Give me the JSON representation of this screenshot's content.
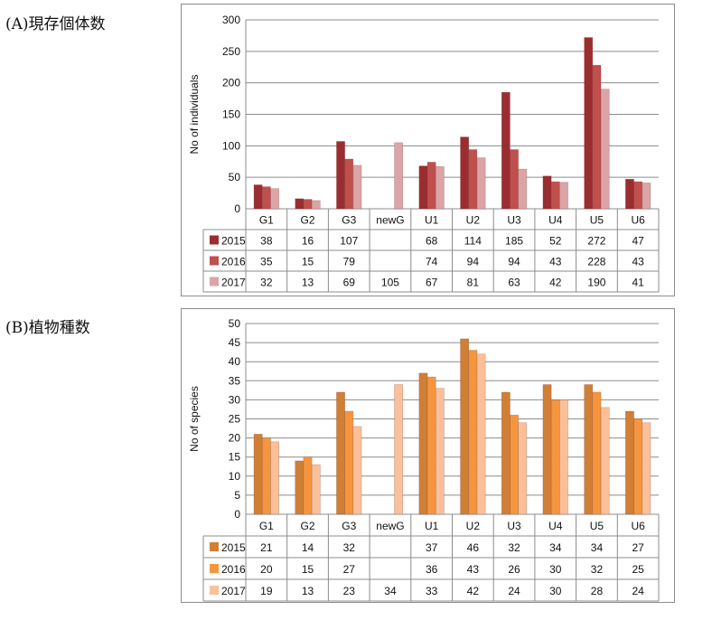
{
  "panels": [
    {
      "label": "(A)現存個体数"
    },
    {
      "label": "(B)植物種数"
    }
  ],
  "chart_data": [
    {
      "type": "bar",
      "title": "",
      "ylabel": "No of individuals",
      "xlabel": "",
      "ylim": [
        0,
        300
      ],
      "yticks": [
        0,
        50,
        100,
        150,
        200,
        250,
        300
      ],
      "grid": true,
      "legend": "data-table-left",
      "categories": [
        "G1",
        "G2",
        "G3",
        "newG",
        "U1",
        "U2",
        "U3",
        "U4",
        "U5",
        "U6"
      ],
      "series": [
        {
          "name": "2015",
          "color": "#9b2d30",
          "values": [
            38,
            16,
            107,
            null,
            68,
            114,
            185,
            52,
            272,
            47
          ]
        },
        {
          "name": "2016",
          "color": "#c0504d",
          "values": [
            35,
            15,
            79,
            null,
            74,
            94,
            94,
            43,
            228,
            43
          ]
        },
        {
          "name": "2017",
          "color": "#dba5a6",
          "values": [
            32,
            13,
            69,
            105,
            67,
            81,
            63,
            42,
            190,
            41
          ]
        }
      ]
    },
    {
      "type": "bar",
      "title": "",
      "ylabel": "No of species",
      "xlabel": "",
      "ylim": [
        0,
        50
      ],
      "yticks": [
        0,
        5,
        10,
        15,
        20,
        25,
        30,
        35,
        40,
        45,
        50
      ],
      "grid": true,
      "legend": "data-table-left",
      "categories": [
        "G1",
        "G2",
        "G3",
        "newG",
        "U1",
        "U2",
        "U3",
        "U4",
        "U5",
        "U6"
      ],
      "series": [
        {
          "name": "2015",
          "color": "#d07f35",
          "values": [
            21,
            14,
            32,
            null,
            37,
            46,
            32,
            34,
            34,
            27
          ]
        },
        {
          "name": "2016",
          "color": "#f5963f",
          "values": [
            20,
            15,
            27,
            null,
            36,
            43,
            26,
            30,
            32,
            25
          ]
        },
        {
          "name": "2017",
          "color": "#fbc09a",
          "values": [
            19,
            13,
            23,
            34,
            33,
            42,
            24,
            30,
            28,
            24
          ]
        }
      ]
    }
  ]
}
